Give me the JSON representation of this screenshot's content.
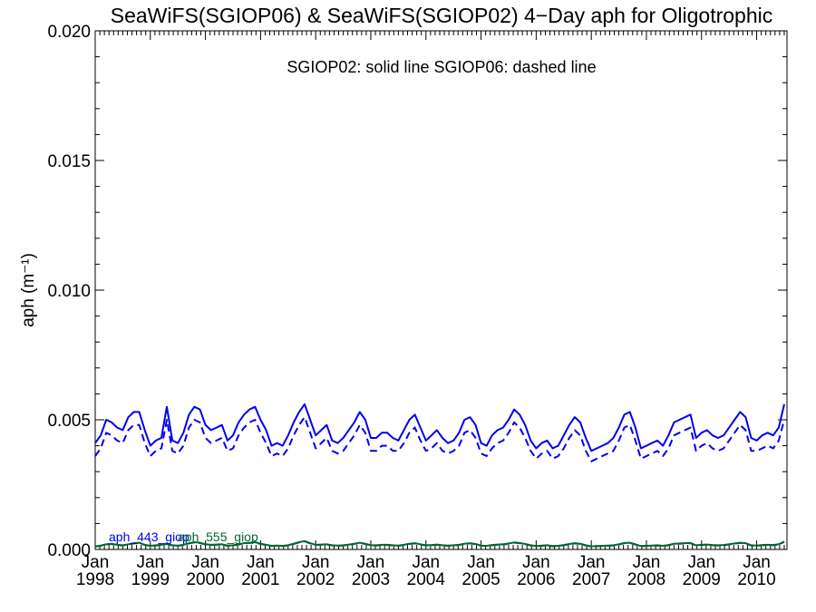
{
  "chart_data": {
    "type": "line",
    "title": "SeaWiFS(SGIOP06) & SeaWiFS(SGIOP02) 4−Day aph for Oligotrophic",
    "annotation": "SGIOP02: solid line   SGIOP06: dashed line",
    "ylabel": "aph (m⁻¹)",
    "xlabel": "",
    "xlim": [
      1998.0,
      2010.55
    ],
    "ylim": [
      0.0,
      0.02
    ],
    "yticks": [
      "0.000",
      "0.005",
      "0.010",
      "0.015",
      "0.020"
    ],
    "xticks": [
      {
        "month": "Jan",
        "year": "1998"
      },
      {
        "month": "Jan",
        "year": "1999"
      },
      {
        "month": "Jan",
        "year": "2000"
      },
      {
        "month": "Jan",
        "year": "2001"
      },
      {
        "month": "Jan",
        "year": "2002"
      },
      {
        "month": "Jan",
        "year": "2003"
      },
      {
        "month": "Jan",
        "year": "2004"
      },
      {
        "month": "Jan",
        "year": "2005"
      },
      {
        "month": "Jan",
        "year": "2006"
      },
      {
        "month": "Jan",
        "year": "2007"
      },
      {
        "month": "Jan",
        "year": "2008"
      },
      {
        "month": "Jan",
        "year": "2009"
      },
      {
        "month": "Jan",
        "year": "2010"
      }
    ],
    "legend_labels": [
      "aph_443_giop",
      "aph_555_giop"
    ],
    "x": [
      1998.0,
      1998.1,
      1998.2,
      1998.3,
      1998.4,
      1998.5,
      1998.6,
      1998.7,
      1998.8,
      1998.9,
      1999.0,
      1999.1,
      1999.2,
      1999.3,
      1999.4,
      1999.5,
      1999.6,
      1999.7,
      1999.8,
      1999.9,
      2000.0,
      2000.1,
      2000.2,
      2000.3,
      2000.4,
      2000.5,
      2000.6,
      2000.7,
      2000.8,
      2000.9,
      2001.0,
      2001.1,
      2001.2,
      2001.3,
      2001.4,
      2001.5,
      2001.6,
      2001.7,
      2001.8,
      2001.9,
      2002.0,
      2002.1,
      2002.2,
      2002.3,
      2002.4,
      2002.5,
      2002.6,
      2002.7,
      2002.8,
      2002.9,
      2003.0,
      2003.1,
      2003.2,
      2003.3,
      2003.4,
      2003.5,
      2003.6,
      2003.7,
      2003.8,
      2003.9,
      2004.0,
      2004.1,
      2004.2,
      2004.3,
      2004.4,
      2004.5,
      2004.6,
      2004.7,
      2004.8,
      2004.9,
      2005.0,
      2005.1,
      2005.2,
      2005.3,
      2005.4,
      2005.5,
      2005.6,
      2005.7,
      2005.8,
      2005.9,
      2006.0,
      2006.1,
      2006.2,
      2006.3,
      2006.4,
      2006.5,
      2006.6,
      2006.7,
      2006.8,
      2006.9,
      2007.0,
      2007.1,
      2007.2,
      2007.3,
      2007.4,
      2007.5,
      2007.6,
      2007.7,
      2007.8,
      2007.9,
      2008.0,
      2008.1,
      2008.2,
      2008.3,
      2008.4,
      2008.5,
      2008.6,
      2008.7,
      2008.8,
      2008.9,
      2009.0,
      2009.1,
      2009.2,
      2009.3,
      2009.4,
      2009.5,
      2009.6,
      2009.7,
      2009.8,
      2009.9,
      2010.0,
      2010.1,
      2010.2,
      2010.3,
      2010.4,
      2010.5
    ],
    "series": [
      {
        "name": "aph_443_giop",
        "style": "solid",
        "color": "#0000ee",
        "values": [
          0.0041,
          0.0044,
          0.005,
          0.0049,
          0.0047,
          0.0046,
          0.0051,
          0.0053,
          0.0053,
          0.0046,
          0.004,
          0.0042,
          0.0043,
          0.0055,
          0.0042,
          0.0041,
          0.0045,
          0.0052,
          0.0055,
          0.0054,
          0.0048,
          0.0046,
          0.0047,
          0.0048,
          0.0042,
          0.0044,
          0.0049,
          0.0052,
          0.0054,
          0.0055,
          0.005,
          0.0046,
          0.004,
          0.0041,
          0.004,
          0.0044,
          0.0049,
          0.0053,
          0.0056,
          0.005,
          0.0044,
          0.0046,
          0.0048,
          0.0042,
          0.0041,
          0.0043,
          0.0046,
          0.0049,
          0.0053,
          0.005,
          0.0043,
          0.0043,
          0.0045,
          0.0045,
          0.0043,
          0.0042,
          0.0046,
          0.005,
          0.0052,
          0.0047,
          0.0042,
          0.0044,
          0.0046,
          0.0043,
          0.0041,
          0.0042,
          0.0045,
          0.005,
          0.0051,
          0.0048,
          0.0041,
          0.004,
          0.0044,
          0.0046,
          0.0047,
          0.005,
          0.0054,
          0.0052,
          0.0048,
          0.0042,
          0.0039,
          0.0041,
          0.0042,
          0.0039,
          0.004,
          0.0044,
          0.0048,
          0.0051,
          0.0049,
          0.0043,
          0.0038,
          0.0039,
          0.004,
          0.0041,
          0.0043,
          0.0047,
          0.0052,
          0.0053,
          0.0047,
          0.0039,
          0.004,
          0.0041,
          0.0042,
          0.004,
          0.0044,
          0.0049,
          0.005,
          0.0051,
          0.0052,
          0.0043,
          0.0045,
          0.0046,
          0.0044,
          0.0043,
          0.0044,
          0.0047,
          0.005,
          0.0053,
          0.0051,
          0.0043,
          0.0042,
          0.0044,
          0.0045,
          0.0044,
          0.0047,
          0.0056
        ]
      },
      {
        "name": "aph_443_giop",
        "style": "dashed",
        "color": "#0000ee",
        "values": [
          0.0036,
          0.0039,
          0.0045,
          0.0044,
          0.0042,
          0.0041,
          0.0046,
          0.0048,
          0.0048,
          0.0041,
          0.0036,
          0.0038,
          0.0039,
          0.005,
          0.0038,
          0.0037,
          0.004,
          0.0047,
          0.005,
          0.0049,
          0.0043,
          0.0041,
          0.0042,
          0.0043,
          0.0038,
          0.0039,
          0.0044,
          0.0047,
          0.0049,
          0.005,
          0.0045,
          0.0041,
          0.0036,
          0.0037,
          0.0036,
          0.0039,
          0.0044,
          0.0048,
          0.0051,
          0.0045,
          0.0039,
          0.0041,
          0.0043,
          0.0038,
          0.0037,
          0.0038,
          0.0041,
          0.0044,
          0.0048,
          0.0045,
          0.0038,
          0.0038,
          0.004,
          0.004,
          0.0038,
          0.0038,
          0.0041,
          0.0045,
          0.0047,
          0.0042,
          0.0038,
          0.0039,
          0.0041,
          0.0038,
          0.0037,
          0.0038,
          0.004,
          0.0045,
          0.0046,
          0.0043,
          0.0037,
          0.0036,
          0.0039,
          0.0041,
          0.0042,
          0.0045,
          0.0049,
          0.0047,
          0.0043,
          0.0038,
          0.0035,
          0.0037,
          0.0038,
          0.0035,
          0.0036,
          0.0039,
          0.0043,
          0.0046,
          0.0044,
          0.0038,
          0.0034,
          0.0035,
          0.0036,
          0.0037,
          0.0038,
          0.0042,
          0.0047,
          0.0048,
          0.0042,
          0.0035,
          0.0036,
          0.0037,
          0.0038,
          0.0036,
          0.0039,
          0.0044,
          0.0045,
          0.0046,
          0.0047,
          0.0038,
          0.004,
          0.0041,
          0.0039,
          0.0038,
          0.0039,
          0.0042,
          0.0045,
          0.0048,
          0.0046,
          0.0038,
          0.0038,
          0.0039,
          0.004,
          0.0039,
          0.0042,
          0.005
        ]
      },
      {
        "name": "aph_555_giop",
        "style": "solid",
        "color": "#006633",
        "values": [
          0.00012,
          0.00015,
          0.0002,
          0.00022,
          0.00018,
          0.00016,
          0.0002,
          0.00024,
          0.00026,
          0.00018,
          0.00014,
          0.00016,
          0.00018,
          0.00022,
          0.00016,
          0.00015,
          0.00018,
          0.00024,
          0.00028,
          0.00026,
          0.0002,
          0.00018,
          0.00019,
          0.0002,
          0.00015,
          0.00016,
          0.0002,
          0.00024,
          0.00026,
          0.00028,
          0.00022,
          0.00018,
          0.00014,
          0.00015,
          0.00014,
          0.00016,
          0.00022,
          0.00028,
          0.00032,
          0.00024,
          0.00018,
          0.00019,
          0.0002,
          0.00016,
          0.00015,
          0.00016,
          0.00019,
          0.00022,
          0.00026,
          0.00022,
          0.00016,
          0.00016,
          0.00018,
          0.00018,
          0.00016,
          0.00015,
          0.00018,
          0.00022,
          0.00024,
          0.0002,
          0.00016,
          0.00017,
          0.00019,
          0.00016,
          0.00015,
          0.00016,
          0.00018,
          0.00022,
          0.00024,
          0.00021,
          0.00015,
          0.00014,
          0.00017,
          0.00019,
          0.0002,
          0.00023,
          0.00027,
          0.00025,
          0.00021,
          0.00016,
          0.00013,
          0.00015,
          0.00016,
          0.00013,
          0.00014,
          0.00017,
          0.00021,
          0.00024,
          0.00022,
          0.00016,
          0.00012,
          0.00013,
          0.00014,
          0.00015,
          0.00016,
          0.0002,
          0.00025,
          0.00026,
          0.0002,
          0.00013,
          0.00014,
          0.00015,
          0.00016,
          0.00014,
          0.00017,
          0.00022,
          0.00023,
          0.00024,
          0.00025,
          0.00016,
          0.00018,
          0.00019,
          0.00017,
          0.00016,
          0.00017,
          0.0002,
          0.00023,
          0.00026,
          0.00024,
          0.00016,
          0.00015,
          0.00017,
          0.00018,
          0.00017,
          0.0002,
          0.0003
        ]
      },
      {
        "name": "aph_555_giop",
        "style": "dashed",
        "color": "#006633",
        "values": [
          0.00011,
          0.00014,
          0.00019,
          0.00021,
          0.00017,
          0.00015,
          0.00019,
          0.00023,
          0.00025,
          0.00017,
          0.00013,
          0.00015,
          0.00017,
          0.00021,
          0.00015,
          0.00014,
          0.00017,
          0.00023,
          0.00027,
          0.00025,
          0.00019,
          0.00017,
          0.00018,
          0.00019,
          0.00014,
          0.00015,
          0.00019,
          0.00023,
          0.00025,
          0.00027,
          0.00021,
          0.00017,
          0.00013,
          0.00014,
          0.00013,
          0.00015,
          0.00021,
          0.00027,
          0.00031,
          0.00023,
          0.00017,
          0.00018,
          0.00019,
          0.00015,
          0.00014,
          0.00015,
          0.00018,
          0.00021,
          0.00025,
          0.00021,
          0.00015,
          0.00015,
          0.00017,
          0.00017,
          0.00015,
          0.00014,
          0.00017,
          0.00021,
          0.00023,
          0.00019,
          0.00015,
          0.00016,
          0.00018,
          0.00015,
          0.00014,
          0.00015,
          0.00017,
          0.00021,
          0.00023,
          0.0002,
          0.00014,
          0.00013,
          0.00016,
          0.00018,
          0.00019,
          0.00022,
          0.00026,
          0.00024,
          0.0002,
          0.00015,
          0.00012,
          0.00014,
          0.00015,
          0.00012,
          0.00013,
          0.00016,
          0.0002,
          0.00023,
          0.00021,
          0.00015,
          0.00011,
          0.00012,
          0.00013,
          0.00014,
          0.00015,
          0.00019,
          0.00024,
          0.00025,
          0.00019,
          0.00012,
          0.00013,
          0.00014,
          0.00015,
          0.00013,
          0.00016,
          0.00021,
          0.00022,
          0.00023,
          0.00024,
          0.00015,
          0.00017,
          0.00018,
          0.00016,
          0.00015,
          0.00016,
          0.00019,
          0.00022,
          0.00025,
          0.00023,
          0.00015,
          0.00014,
          0.00016,
          0.00017,
          0.00016,
          0.00019,
          0.00029
        ]
      }
    ]
  }
}
